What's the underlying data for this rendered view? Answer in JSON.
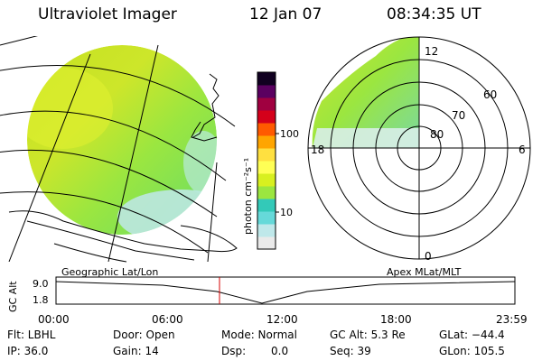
{
  "header": {
    "instrument": "Ultraviolet Imager",
    "date": "12 Jan 07",
    "time": "08:34:35 UT"
  },
  "colorbar": {
    "unit_label": "photon cm⁻²s⁻¹",
    "ticks": [
      "100",
      "10"
    ],
    "colors": [
      "#eaeaea",
      "#bfe8ea",
      "#66d9d9",
      "#33c9b8",
      "#9be640",
      "#d8f020",
      "#ffff55",
      "#ffe040",
      "#ffa500",
      "#ff5a00",
      "#d4001a",
      "#a00040",
      "#5a0060",
      "#100020"
    ]
  },
  "polar_plot": {
    "mlat_labels": [
      "80",
      "70",
      "60"
    ],
    "mlt_labels": {
      "top": "12",
      "left": "18",
      "right": "6",
      "bottom": "0"
    }
  },
  "altitude_panel": {
    "left_label": "Geographic Lat/Lon",
    "right_label": "Apex MLat/MLT",
    "y_axis_label": "GC Alt",
    "y_ticks": [
      "9.0",
      "1.8"
    ],
    "x_ticks": [
      "00:00",
      "06:00",
      "12:00",
      "18:00",
      "23:59"
    ]
  },
  "status": {
    "flt": "Flt: LBHL",
    "ip": "IP: 36.0",
    "door": "Door: Open",
    "gain": "Gain: 14",
    "mode": "Mode: Normal",
    "dsp_label": "Dsp:",
    "dsp_value": "0.0",
    "gc_alt": "GC Alt: 5.3 Re",
    "seq": "Seq: 39",
    "glat": "GLat: −44.4",
    "glon": "GLon: 105.5"
  }
}
